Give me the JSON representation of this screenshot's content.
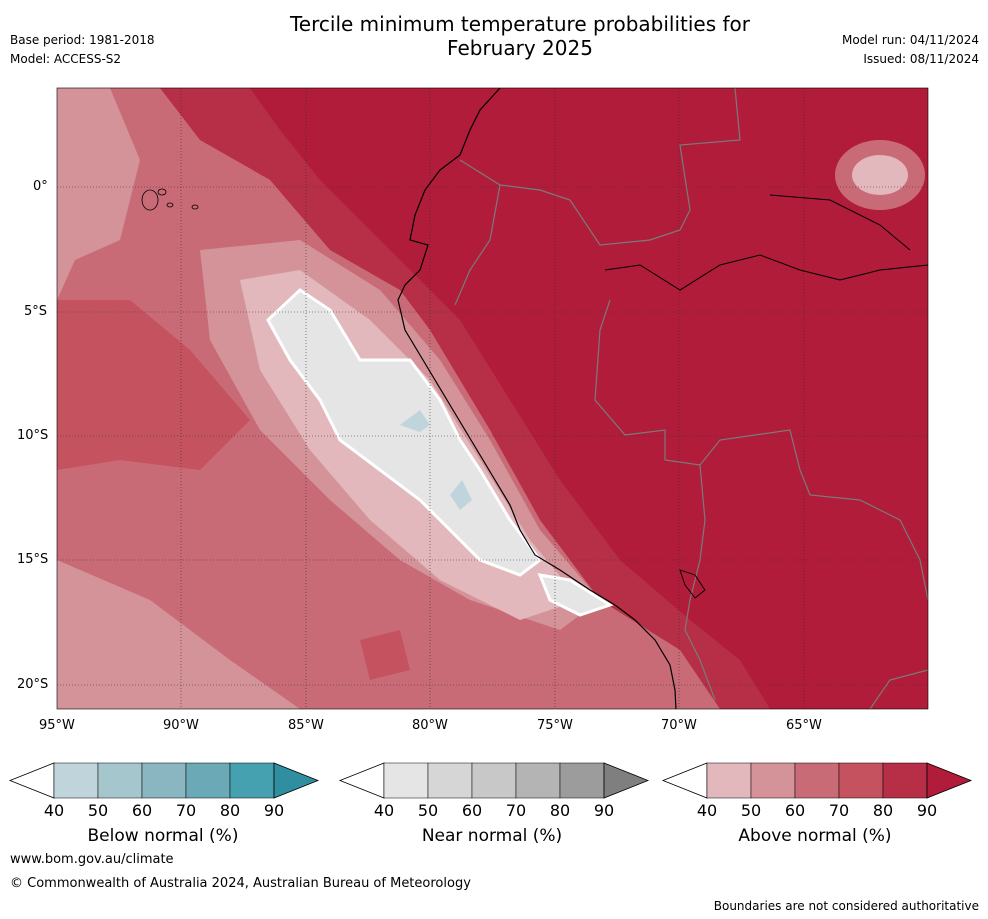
{
  "header": {
    "title_line1": "Tercile minimum temperature probabilities for",
    "title_line2": "February 2025",
    "base_period": "Base period: 1981-2018",
    "model": "Model: ACCESS-S2",
    "model_run": "Model run: 04/11/2024",
    "issued": "Issued: 08/11/2024"
  },
  "map": {
    "lat_labels": [
      "0°",
      "5°S",
      "10°S",
      "15°S",
      "20°S"
    ],
    "lon_labels": [
      "95°W",
      "90°W",
      "85°W",
      "80°W",
      "75°W",
      "70°W",
      "65°W"
    ]
  },
  "colorbars": [
    {
      "title": "Below normal (%)",
      "ticks": [
        "40",
        "50",
        "60",
        "70",
        "80",
        "90"
      ],
      "colors": [
        "#bfd5db",
        "#a6c6cd",
        "#89b6c1",
        "#6aa9b5",
        "#45a0b0",
        "#2f8fa1"
      ]
    },
    {
      "title": "Near normal (%)",
      "ticks": [
        "40",
        "50",
        "60",
        "70",
        "80",
        "90"
      ],
      "colors": [
        "#e5e5e5",
        "#d6d6d6",
        "#c8c8c8",
        "#b4b4b4",
        "#9c9c9c",
        "#7f7f7f"
      ]
    },
    {
      "title": "Above normal (%)",
      "ticks": [
        "40",
        "50",
        "60",
        "70",
        "80",
        "90"
      ],
      "colors": [
        "#e2b8bc",
        "#d39399",
        "#c96b77",
        "#c4525f",
        "#b62f46",
        "#b11c3a"
      ]
    }
  ],
  "footer": {
    "website": "www.bom.gov.au/climate",
    "copyright": "© Commonwealth of Australia 2024, Australian Bureau of Meteorology",
    "disclaimer": "Boundaries are not considered authoritative"
  }
}
